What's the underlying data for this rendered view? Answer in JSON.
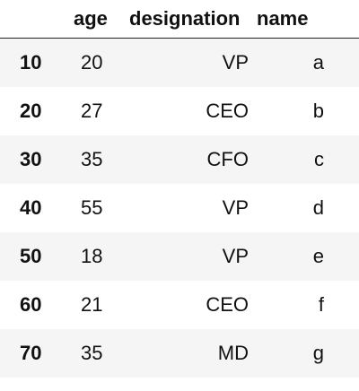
{
  "table": {
    "columns": [
      "",
      "age",
      "designation",
      "name"
    ],
    "rows": [
      {
        "index": "10",
        "age": "20",
        "designation": "VP",
        "name": "a"
      },
      {
        "index": "20",
        "age": "27",
        "designation": "CEO",
        "name": "b"
      },
      {
        "index": "30",
        "age": "35",
        "designation": "CFO",
        "name": "c"
      },
      {
        "index": "40",
        "age": "55",
        "designation": "VP",
        "name": "d"
      },
      {
        "index": "50",
        "age": "18",
        "designation": "VP",
        "name": "e"
      },
      {
        "index": "60",
        "age": "21",
        "designation": "CEO",
        "name": "f"
      },
      {
        "index": "70",
        "age": "35",
        "designation": "MD",
        "name": "g"
      }
    ]
  },
  "colors": {
    "stripe": "#f5f5f5",
    "background": "#ffffff",
    "text": "#111111",
    "rule": "#222222"
  }
}
